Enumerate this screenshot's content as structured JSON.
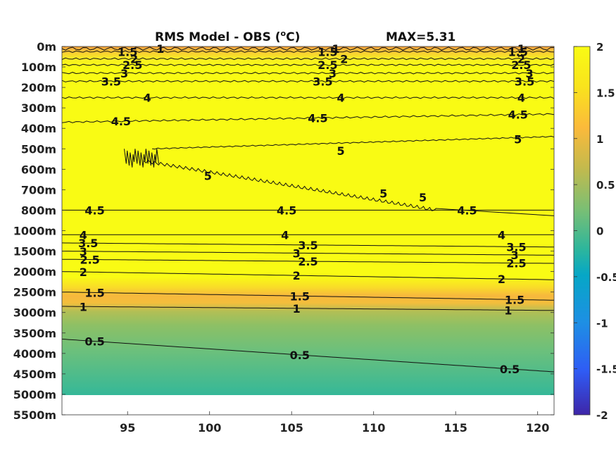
{
  "chart_data": {
    "type": "heatmap",
    "title": "RMS Model - OBS (°C)",
    "title_main": "RMS Model - OBS (",
    "title_sup": "o",
    "title_end": "C)",
    "annotation": "MAX=5.31",
    "x_ticks": [
      95,
      100,
      105,
      110,
      115,
      120
    ],
    "xlim": [
      91,
      121
    ],
    "y_tick_labels": [
      "0m",
      "100m",
      "200m",
      "300m",
      "400m",
      "500m",
      "600m",
      "700m",
      "800m",
      "1000m",
      "1500m",
      "2000m",
      "2500m",
      "3000m",
      "3500m",
      "4000m",
      "4500m",
      "5000m",
      "5500m"
    ],
    "data_bottom_label": "5000m",
    "colorbar": {
      "range": [
        -2,
        2
      ],
      "ticks": [
        2,
        1.5,
        1,
        0.5,
        0,
        -0.5,
        -1,
        -1.5,
        -2
      ],
      "tick_labels": [
        "2",
        "1.5",
        "1",
        "0.5",
        "0",
        "-0.5",
        "-1",
        "-1.5",
        "-2"
      ],
      "colors": [
        "#3e26a8",
        "#2f5cf5",
        "#1e8fe4",
        "#06a7c6",
        "#2db69c",
        "#7cbf73",
        "#c3ba4d",
        "#fbba3b",
        "#f9e31d",
        "#f9fb14"
      ]
    },
    "field_colors": {
      "high": "#f9fb14",
      "mid_orange": "#f7b83d",
      "green": "#82c06c",
      "teal": "#35b898"
    },
    "contours": [
      {
        "label": "1",
        "depth_left": "0m+",
        "depth_right": "0m+"
      },
      {
        "label": "1.5",
        "depth_left": "25m",
        "depth_right": "25m"
      },
      {
        "label": "2",
        "depth_left": "60m",
        "depth_right": "60m"
      },
      {
        "label": "2.5",
        "depth_left": "90m",
        "depth_right": "90m"
      },
      {
        "label": "3",
        "depth_left": "130m",
        "depth_right": "130m"
      },
      {
        "label": "3.5",
        "depth_left": "170m",
        "depth_right": "170m"
      },
      {
        "label": "4",
        "depth_left": "250m",
        "depth_right": "250m"
      },
      {
        "label": "4.5",
        "depth_left": "370m",
        "depth_right": "330m"
      },
      {
        "label": "5",
        "depth_left": "600m",
        "depth_right": "440m"
      },
      {
        "label": "5",
        "depth_left": "560m",
        "depth_right": "800m"
      },
      {
        "label": "4.5",
        "depth_left": "800m",
        "depth_right": "800m"
      },
      {
        "label": "4",
        "depth_left": "1100m",
        "depth_right": "1100m"
      },
      {
        "label": "3.5",
        "depth_left": "1300m",
        "depth_right": "1400m"
      },
      {
        "label": "3",
        "depth_left": "1500m",
        "depth_right": "1600m"
      },
      {
        "label": "2.5",
        "depth_left": "1700m",
        "depth_right": "1800m"
      },
      {
        "label": "2",
        "depth_left": "2000m",
        "depth_right": "2200m"
      },
      {
        "label": "1.5",
        "depth_left": "2500m",
        "depth_right": "2700m"
      },
      {
        "label": "1",
        "depth_left": "2850m",
        "depth_right": "2950m"
      },
      {
        "label": "0.5",
        "depth_left": "3650m",
        "depth_right": "4450m"
      }
    ]
  }
}
